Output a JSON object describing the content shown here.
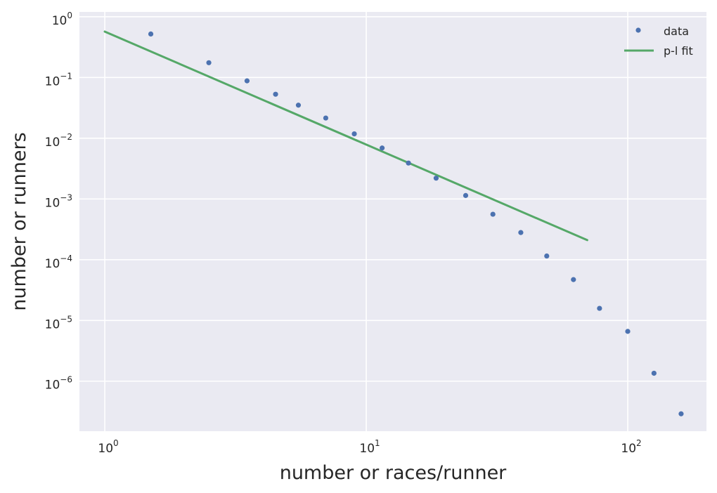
{
  "chart_data": {
    "type": "scatter",
    "title": "",
    "xlabel": "number or races/runner",
    "ylabel": "number or runners",
    "xscale": "log",
    "yscale": "log",
    "xlim": [
      0.8,
      200
    ],
    "ylim": [
      1.5e-07,
      1.2
    ],
    "grid": true,
    "legend_placement": "top-right",
    "x_ticks": [
      {
        "value": 1,
        "base": "10",
        "exp": "0"
      },
      {
        "value": 10,
        "base": "10",
        "exp": "1"
      },
      {
        "value": 100,
        "base": "10",
        "exp": "2"
      }
    ],
    "y_ticks": [
      {
        "value": 1,
        "base": "10",
        "exp": "0"
      },
      {
        "value": 0.1,
        "base": "10",
        "exp": "−1"
      },
      {
        "value": 0.01,
        "base": "10",
        "exp": "−2"
      },
      {
        "value": 0.001,
        "base": "10",
        "exp": "−3"
      },
      {
        "value": 0.0001,
        "base": "10",
        "exp": "−4"
      },
      {
        "value": 1e-05,
        "base": "10",
        "exp": "−5"
      },
      {
        "value": 1e-06,
        "base": "10",
        "exp": "−6"
      }
    ],
    "series": [
      {
        "name": "data",
        "style": "markers",
        "color": "#4c72b0",
        "points": [
          [
            1.5,
            0.52
          ],
          [
            2.5,
            0.175
          ],
          [
            3.5,
            0.088
          ],
          [
            4.5,
            0.053
          ],
          [
            5.5,
            0.035
          ],
          [
            7.0,
            0.0215
          ],
          [
            9.0,
            0.0118
          ],
          [
            11.5,
            0.0069
          ],
          [
            14.5,
            0.0039
          ],
          [
            18.5,
            0.0022
          ],
          [
            24.0,
            0.00114
          ],
          [
            30.5,
            0.00056
          ],
          [
            39.0,
            0.00028
          ],
          [
            49.0,
            0.000115
          ],
          [
            62.0,
            4.7e-05
          ],
          [
            78.0,
            1.58e-05
          ],
          [
            100.0,
            6.6e-06
          ],
          [
            126.0,
            1.35e-06
          ],
          [
            160.0,
            2.9e-07
          ]
        ]
      },
      {
        "name": "p-l fit",
        "style": "line",
        "color": "#55a868",
        "points": [
          [
            1.0,
            0.57
          ],
          [
            70.0,
            0.00021
          ]
        ]
      }
    ]
  },
  "colors": {
    "plot_background": "#eaeaf2",
    "grid": "#ffffff",
    "text": "#262626"
  }
}
